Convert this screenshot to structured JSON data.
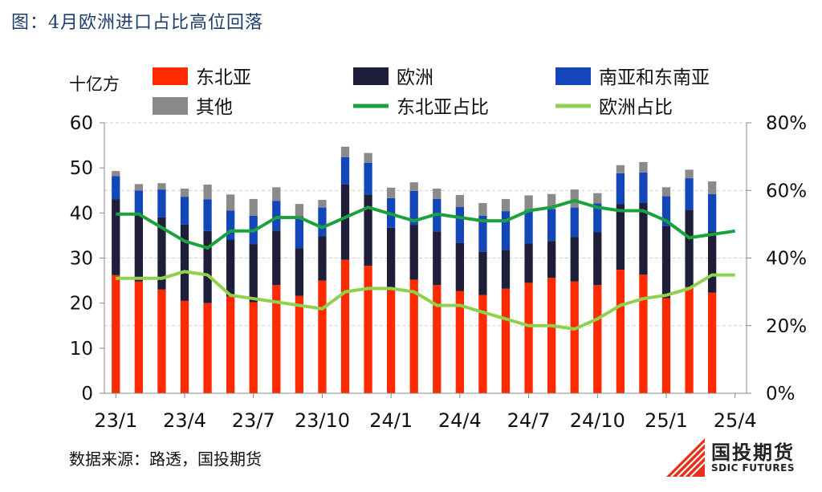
{
  "title": "图：4月欧洲进口占比高位回落",
  "source": "数据来源：路透，国投期货",
  "logo": {
    "cn": "国投期货",
    "en": "SDIC FUTURES"
  },
  "colors": {
    "northeast_asia": "#ff2a00",
    "europe": "#1e1e3a",
    "south_se_asia": "#1346b9",
    "other": "#8a8a8a",
    "ne_share": "#1aa33c",
    "eu_share": "#8fd14f",
    "logo_red": "#e8321e"
  },
  "chart_data": {
    "type": "bar",
    "stacked": true,
    "unit_left": "十亿方",
    "ylim_left": [
      0,
      60
    ],
    "yticks_left": [
      "0",
      "10",
      "20",
      "30",
      "40",
      "50",
      "60"
    ],
    "ylim_right": [
      0,
      0.8
    ],
    "yticks_right": [
      "0%",
      "20%",
      "40%",
      "60%",
      "80%"
    ],
    "x_tick_labels": [
      "23/1",
      "23/4",
      "23/7",
      "23/10",
      "24/1",
      "24/4",
      "24/7",
      "24/10",
      "25/1",
      "25/4"
    ],
    "x_tick_every": 3,
    "grid": "horizontal dashed",
    "legend_position": "top",
    "categories": [
      "2023-01",
      "2023-02",
      "2023-03",
      "2023-04",
      "2023-05",
      "2023-06",
      "2023-07",
      "2023-08",
      "2023-09",
      "2023-10",
      "2023-11",
      "2023-12",
      "2024-01",
      "2024-02",
      "2024-03",
      "2024-04",
      "2024-05",
      "2024-06",
      "2024-07",
      "2024-08",
      "2024-09",
      "2024-10",
      "2024-11",
      "2024-12",
      "2025-01",
      "2025-02",
      "2025-03",
      "2025-04"
    ],
    "series": [
      {
        "name": "东北亚",
        "kind": "bar",
        "axis": "left",
        "values": [
          26.2,
          24.8,
          23.0,
          20.5,
          20.0,
          21.5,
          20.2,
          24.0,
          21.6,
          25.0,
          29.6,
          28.3,
          23.4,
          25.2,
          24.0,
          22.7,
          21.8,
          23.2,
          24.5,
          25.6,
          24.8,
          24.0,
          27.4,
          26.3,
          21.1,
          23.6,
          22.3,
          0
        ]
      },
      {
        "name": "欧洲",
        "kind": "bar",
        "axis": "left",
        "values": [
          16.8,
          15.2,
          16.0,
          16.9,
          16.0,
          12.6,
          12.9,
          12.1,
          10.6,
          9.8,
          16.7,
          15.8,
          13.3,
          12.1,
          11.9,
          10.6,
          9.6,
          8.6,
          8.7,
          8.2,
          9.9,
          11.7,
          14.6,
          15.9,
          16.0,
          17.1,
          13.6,
          0
        ]
      },
      {
        "name": "南亚和东南亚",
        "kind": "bar",
        "axis": "left",
        "values": [
          5.2,
          5.0,
          6.2,
          6.2,
          7.0,
          6.4,
          6.3,
          6.6,
          7.1,
          6.4,
          6.1,
          7.0,
          6.6,
          7.6,
          7.2,
          8.0,
          8.0,
          8.6,
          7.5,
          7.1,
          6.5,
          6.4,
          6.8,
          6.8,
          6.6,
          7.0,
          8.3,
          0
        ]
      },
      {
        "name": "其他",
        "kind": "bar",
        "axis": "left",
        "values": [
          1.1,
          1.4,
          1.4,
          1.8,
          3.3,
          3.6,
          3.7,
          3.0,
          2.7,
          1.7,
          2.3,
          2.2,
          2.3,
          1.9,
          2.3,
          2.7,
          2.8,
          2.7,
          3.2,
          3.3,
          4.0,
          2.3,
          1.8,
          2.3,
          2.0,
          1.9,
          2.8,
          0
        ]
      },
      {
        "name": "东北亚占比",
        "kind": "line",
        "axis": "right",
        "values": [
          0.53,
          0.53,
          0.49,
          0.45,
          0.43,
          0.48,
          0.48,
          0.52,
          0.52,
          0.49,
          0.52,
          0.55,
          0.53,
          0.51,
          0.53,
          0.52,
          0.51,
          0.51,
          0.54,
          0.55,
          0.57,
          0.55,
          0.54,
          0.54,
          0.51,
          0.46,
          0.47,
          0.48
        ]
      },
      {
        "name": "欧洲占比",
        "kind": "line",
        "axis": "right",
        "values": [
          0.34,
          0.34,
          0.34,
          0.36,
          0.35,
          0.29,
          0.28,
          0.27,
          0.26,
          0.25,
          0.3,
          0.31,
          0.31,
          0.3,
          0.26,
          0.26,
          0.24,
          0.22,
          0.2,
          0.2,
          0.19,
          0.22,
          0.26,
          0.28,
          0.29,
          0.31,
          0.35,
          0.35
        ]
      }
    ]
  }
}
